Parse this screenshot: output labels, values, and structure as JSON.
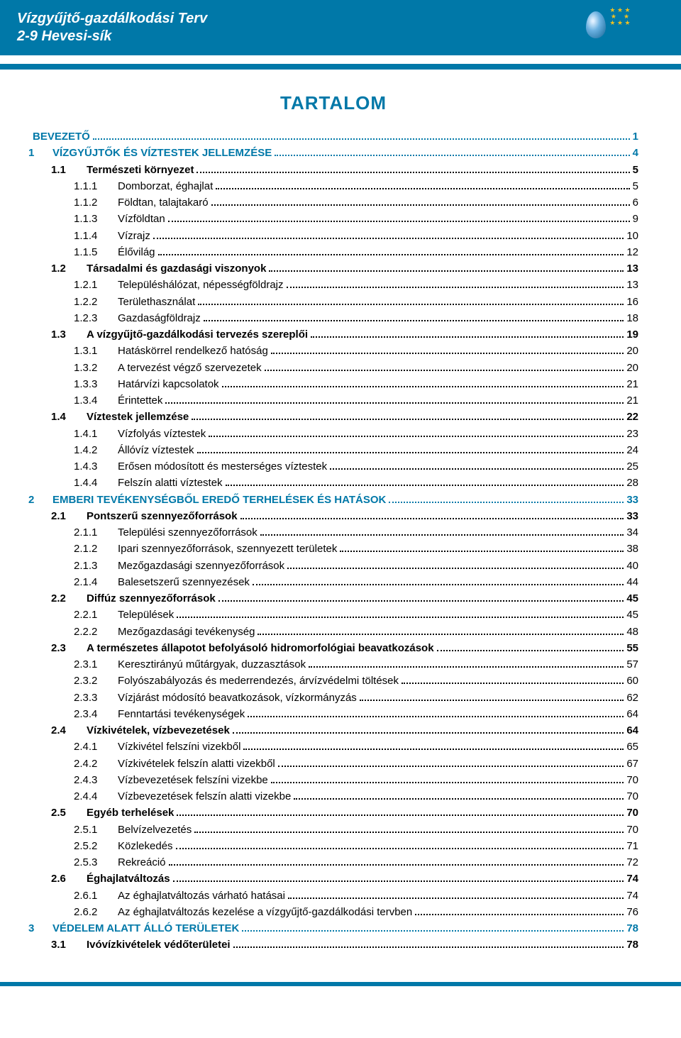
{
  "header": {
    "title": "Vízgyűjtő-gazdálkodási Terv",
    "subtitle": "2-9 Hevesi-sík"
  },
  "mainTitle": "TARTALOM",
  "colors": {
    "primary": "#0078a8",
    "text": "#000000",
    "bg": "#ffffff"
  },
  "toc": [
    {
      "level": "intro",
      "num": "",
      "text": "BEVEZETŐ",
      "page": "1"
    },
    {
      "level": 0,
      "num": "1",
      "text": "VÍZGYŰJTŐK ÉS VÍZTESTEK JELLEMZÉSE",
      "page": "4"
    },
    {
      "level": 1,
      "num": "1.1",
      "text": "Természeti környezet",
      "page": "5"
    },
    {
      "level": 2,
      "num": "1.1.1",
      "text": "Domborzat, éghajlat",
      "page": "5"
    },
    {
      "level": 2,
      "num": "1.1.2",
      "text": "Földtan, talajtakaró",
      "page": "6"
    },
    {
      "level": 2,
      "num": "1.1.3",
      "text": "Vízföldtan",
      "page": "9"
    },
    {
      "level": 2,
      "num": "1.1.4",
      "text": "Vízrajz",
      "page": "10"
    },
    {
      "level": 2,
      "num": "1.1.5",
      "text": "Élővilág",
      "page": "12"
    },
    {
      "level": 1,
      "num": "1.2",
      "text": "Társadalmi és gazdasági viszonyok",
      "page": "13"
    },
    {
      "level": 2,
      "num": "1.2.1",
      "text": "Településhálózat, népességföldrajz",
      "page": "13"
    },
    {
      "level": 2,
      "num": "1.2.2",
      "text": "Területhasználat",
      "page": "16"
    },
    {
      "level": 2,
      "num": "1.2.3",
      "text": "Gazdaságföldrajz",
      "page": "18"
    },
    {
      "level": 1,
      "num": "1.3",
      "text": "A vízgyűjtő-gazdálkodási tervezés szereplői",
      "page": "19"
    },
    {
      "level": 2,
      "num": "1.3.1",
      "text": "Hatáskörrel rendelkező hatóság",
      "page": "20"
    },
    {
      "level": 2,
      "num": "1.3.2",
      "text": "A tervezést végző szervezetek",
      "page": "20"
    },
    {
      "level": 2,
      "num": "1.3.3",
      "text": "Határvízi kapcsolatok",
      "page": "21"
    },
    {
      "level": 2,
      "num": "1.3.4",
      "text": "Érintettek",
      "page": "21"
    },
    {
      "level": 1,
      "num": "1.4",
      "text": "Víztestek jellemzése",
      "page": "22"
    },
    {
      "level": 2,
      "num": "1.4.1",
      "text": "Vízfolyás víztestek",
      "page": "23"
    },
    {
      "level": 2,
      "num": "1.4.2",
      "text": "Állóvíz víztestek",
      "page": "24"
    },
    {
      "level": 2,
      "num": "1.4.3",
      "text": "Erősen módosított és mesterséges víztestek",
      "page": "25"
    },
    {
      "level": 2,
      "num": "1.4.4",
      "text": "Felszín alatti víztestek",
      "page": "28"
    },
    {
      "level": 0,
      "num": "2",
      "text": "EMBERI TEVÉKENYSÉGBŐL EREDŐ TERHELÉSEK ÉS HATÁSOK",
      "page": "33"
    },
    {
      "level": 1,
      "num": "2.1",
      "text": "Pontszerű szennyezőforrások",
      "page": "33"
    },
    {
      "level": 2,
      "num": "2.1.1",
      "text": "Települési szennyezőforrások",
      "page": "34"
    },
    {
      "level": 2,
      "num": "2.1.2",
      "text": "Ipari szennyezőforrások, szennyezett területek",
      "page": "38"
    },
    {
      "level": 2,
      "num": "2.1.3",
      "text": "Mezőgazdasági szennyezőforrások",
      "page": "40"
    },
    {
      "level": 2,
      "num": "2.1.4",
      "text": "Balesetszerű szennyezések",
      "page": "44"
    },
    {
      "level": 1,
      "num": "2.2",
      "text": "Diffúz szennyezőforrások",
      "page": "45"
    },
    {
      "level": 2,
      "num": "2.2.1",
      "text": "Települések",
      "page": "45"
    },
    {
      "level": 2,
      "num": "2.2.2",
      "text": "Mezőgazdasági tevékenység",
      "page": "48"
    },
    {
      "level": 1,
      "num": "2.3",
      "text": "A természetes állapotot befolyásoló hidromorfológiai beavatkozások",
      "page": "55"
    },
    {
      "level": 2,
      "num": "2.3.1",
      "text": "Keresztirányú műtárgyak, duzzasztások",
      "page": "57"
    },
    {
      "level": 2,
      "num": "2.3.2",
      "text": "Folyószabályozás és mederrendezés, árvízvédelmi töltések",
      "page": "60"
    },
    {
      "level": 2,
      "num": "2.3.3",
      "text": "Vízjárást módosító beavatkozások, vízkormányzás",
      "page": "62"
    },
    {
      "level": 2,
      "num": "2.3.4",
      "text": "Fenntartási tevékenységek",
      "page": "64"
    },
    {
      "level": 1,
      "num": "2.4",
      "text": "Vízkivételek, vízbevezetések",
      "page": "64"
    },
    {
      "level": 2,
      "num": "2.4.1",
      "text": "Vízkivétel felszíni vizekből",
      "page": "65"
    },
    {
      "level": 2,
      "num": "2.4.2",
      "text": "Vízkivételek felszín alatti vizekből",
      "page": "67"
    },
    {
      "level": 2,
      "num": "2.4.3",
      "text": "Vízbevezetések felszíni vizekbe",
      "page": "70"
    },
    {
      "level": 2,
      "num": "2.4.4",
      "text": "Vízbevezetések felszín alatti vizekbe",
      "page": "70"
    },
    {
      "level": 1,
      "num": "2.5",
      "text": "Egyéb terhelések",
      "page": "70"
    },
    {
      "level": 2,
      "num": "2.5.1",
      "text": "Belvízelvezetés",
      "page": "70"
    },
    {
      "level": 2,
      "num": "2.5.2",
      "text": "Közlekedés",
      "page": "71"
    },
    {
      "level": 2,
      "num": "2.5.3",
      "text": "Rekreáció",
      "page": "72"
    },
    {
      "level": 1,
      "num": "2.6",
      "text": "Éghajlatváltozás",
      "page": "74"
    },
    {
      "level": 2,
      "num": "2.6.1",
      "text": "Az éghajlatváltozás várható hatásai",
      "page": "74"
    },
    {
      "level": 2,
      "num": "2.6.2",
      "text": "Az éghajlatváltozás kezelése a vízgyűjtő-gazdálkodási tervben",
      "page": "76"
    },
    {
      "level": 0,
      "num": "3",
      "text": "VÉDELEM ALATT ÁLLÓ TERÜLETEK",
      "page": "78"
    },
    {
      "level": 1,
      "num": "3.1",
      "text": "Ivóvízkivételek védőterületei",
      "page": "78"
    }
  ]
}
